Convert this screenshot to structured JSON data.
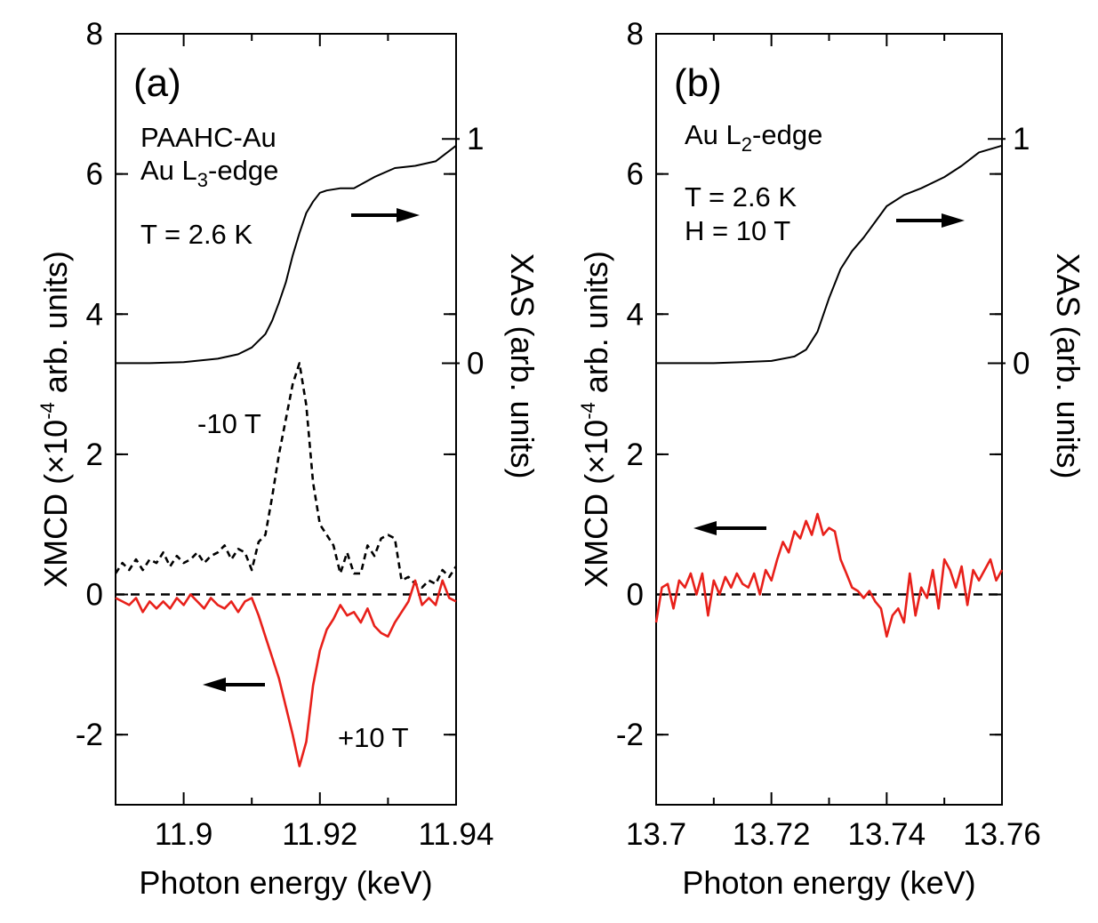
{
  "chart_data": [
    {
      "panel": "a",
      "panel_label": "(a)",
      "type": "line",
      "xlabel": "Photon energy (keV)",
      "ylabel_left": "XMCD (×10⁻⁴ arb. units)",
      "ylabel_left_parts": [
        "XMCD (×10",
        "-4",
        " arb. units)"
      ],
      "ylabel_right": "XAS (arb. units)",
      "xlim": [
        11.89,
        11.94
      ],
      "ylim_left": [
        -3,
        8
      ],
      "xticks": [
        11.9,
        11.92,
        11.94
      ],
      "xtick_labels": [
        "11.9",
        "11.92",
        "11.94"
      ],
      "yticks_left": [
        -2,
        0,
        2,
        4,
        6,
        8
      ],
      "ytick_labels_left": [
        "-2",
        "0",
        "2",
        "4",
        "6",
        "8"
      ],
      "yticks_right": [
        0,
        1
      ],
      "ytick_labels_right": [
        "0",
        "1"
      ],
      "xas_axis_map": {
        "0": 3.3,
        "1": 6.5
      },
      "annotations": {
        "sample": "PAAHC-Au",
        "edge_parts": [
          "Au L",
          "3",
          "-edge"
        ],
        "temperature": "T = 2.6 K",
        "neg_field": "-10 T",
        "pos_field": "+10 T"
      },
      "series": [
        {
          "role": "XAS",
          "axis": "right",
          "color": "#000000",
          "style": "solid",
          "x": [
            11.89,
            11.895,
            11.9,
            11.905,
            11.908,
            11.91,
            11.912,
            11.913,
            11.914,
            11.915,
            11.916,
            11.917,
            11.918,
            11.919,
            11.92,
            11.921,
            11.923,
            11.925,
            11.928,
            11.931,
            11.934,
            11.937,
            11.94
          ],
          "y": [
            0,
            0,
            0.005,
            0.02,
            0.04,
            0.07,
            0.13,
            0.19,
            0.27,
            0.36,
            0.48,
            0.58,
            0.67,
            0.72,
            0.76,
            0.77,
            0.78,
            0.78,
            0.83,
            0.87,
            0.88,
            0.9,
            0.97
          ]
        },
        {
          "name": "-10 T",
          "role": "XMCD",
          "axis": "left",
          "color": "#000000",
          "style": "dashed",
          "x": [
            11.89,
            11.891,
            11.892,
            11.893,
            11.894,
            11.895,
            11.896,
            11.897,
            11.898,
            11.899,
            11.9,
            11.901,
            11.902,
            11.903,
            11.904,
            11.905,
            11.906,
            11.907,
            11.908,
            11.909,
            11.91,
            11.911,
            11.912,
            11.913,
            11.914,
            11.915,
            11.916,
            11.917,
            11.918,
            11.919,
            11.92,
            11.921,
            11.922,
            11.923,
            11.924,
            11.925,
            11.926,
            11.927,
            11.928,
            11.929,
            11.93,
            11.931,
            11.932,
            11.933,
            11.934,
            11.935,
            11.936,
            11.937,
            11.938,
            11.939,
            11.94
          ],
          "y": [
            0.3,
            0.45,
            0.35,
            0.5,
            0.35,
            0.5,
            0.45,
            0.6,
            0.4,
            0.55,
            0.45,
            0.5,
            0.6,
            0.45,
            0.55,
            0.6,
            0.7,
            0.5,
            0.65,
            0.6,
            0.35,
            0.75,
            0.85,
            1.4,
            2.0,
            2.5,
            3.0,
            3.3,
            2.7,
            1.6,
            1.0,
            0.85,
            0.7,
            0.3,
            0.6,
            0.3,
            0.3,
            0.7,
            0.55,
            0.8,
            0.85,
            0.8,
            0.2,
            0.25,
            0.15,
            0.1,
            0.2,
            0.15,
            0.35,
            0.25,
            0.4
          ]
        },
        {
          "name": "+10 T",
          "role": "XMCD",
          "axis": "left",
          "color": "#e8201a",
          "style": "solid",
          "x": [
            11.89,
            11.891,
            11.892,
            11.893,
            11.894,
            11.895,
            11.896,
            11.897,
            11.898,
            11.899,
            11.9,
            11.901,
            11.902,
            11.903,
            11.904,
            11.905,
            11.906,
            11.907,
            11.908,
            11.909,
            11.91,
            11.911,
            11.912,
            11.913,
            11.914,
            11.915,
            11.916,
            11.917,
            11.918,
            11.919,
            11.92,
            11.921,
            11.922,
            11.923,
            11.924,
            11.925,
            11.926,
            11.927,
            11.928,
            11.929,
            11.93,
            11.931,
            11.932,
            11.933,
            11.934,
            11.935,
            11.936,
            11.937,
            11.938,
            11.939,
            11.94
          ],
          "y": [
            -0.05,
            -0.1,
            -0.15,
            -0.05,
            -0.25,
            -0.1,
            -0.2,
            -0.1,
            -0.2,
            -0.05,
            -0.15,
            0.0,
            -0.1,
            -0.2,
            -0.05,
            -0.15,
            -0.2,
            -0.1,
            -0.25,
            -0.1,
            -0.05,
            -0.3,
            -0.6,
            -0.9,
            -1.2,
            -1.6,
            -2.0,
            -2.45,
            -2.1,
            -1.3,
            -0.8,
            -0.5,
            -0.35,
            -0.15,
            -0.3,
            -0.25,
            -0.4,
            -0.2,
            -0.45,
            -0.55,
            -0.6,
            -0.4,
            -0.25,
            -0.1,
            0.2,
            -0.15,
            -0.05,
            -0.15,
            0.2,
            -0.05,
            -0.1
          ]
        }
      ]
    },
    {
      "panel": "b",
      "panel_label": "(b)",
      "type": "line",
      "xlabel": "Photon energy (keV)",
      "ylabel_left": "XMCD (×10⁻⁴ arb. units)",
      "ylabel_left_parts": [
        "XMCD (×10",
        "-4",
        " arb. units)"
      ],
      "ylabel_right": "XAS (arb. units)",
      "xlim": [
        13.7,
        13.76
      ],
      "ylim_left": [
        -3,
        8
      ],
      "xticks": [
        13.7,
        13.72,
        13.74,
        13.76
      ],
      "xtick_labels": [
        "13.7",
        "13.72",
        "13.74",
        "13.76"
      ],
      "yticks_left": [
        -2,
        0,
        2,
        4,
        6,
        8
      ],
      "ytick_labels_left": [
        "-2",
        "0",
        "2",
        "4",
        "6",
        "8"
      ],
      "yticks_right": [
        0,
        1
      ],
      "ytick_labels_right": [
        "0",
        "1"
      ],
      "xas_axis_map": {
        "0": 3.3,
        "1": 6.5
      },
      "annotations": {
        "edge_parts": [
          "Au L",
          "2",
          "-edge"
        ],
        "temperature": "T = 2.6 K",
        "field": "H = 10 T"
      },
      "series": [
        {
          "role": "XAS",
          "axis": "right",
          "color": "#000000",
          "style": "solid",
          "x": [
            13.7,
            13.71,
            13.715,
            13.72,
            13.724,
            13.726,
            13.728,
            13.73,
            13.732,
            13.734,
            13.736,
            13.738,
            13.74,
            13.743,
            13.746,
            13.75,
            13.753,
            13.756,
            13.76
          ],
          "y": [
            0,
            0,
            0.005,
            0.01,
            0.03,
            0.06,
            0.14,
            0.29,
            0.42,
            0.5,
            0.56,
            0.63,
            0.7,
            0.75,
            0.78,
            0.83,
            0.88,
            0.94,
            0.97
          ]
        },
        {
          "name": "H = 10 T",
          "role": "XMCD",
          "axis": "left",
          "color": "#e8201a",
          "style": "solid",
          "x": [
            13.7,
            13.701,
            13.702,
            13.703,
            13.704,
            13.705,
            13.706,
            13.707,
            13.708,
            13.709,
            13.71,
            13.711,
            13.712,
            13.713,
            13.714,
            13.715,
            13.716,
            13.717,
            13.718,
            13.719,
            13.72,
            13.721,
            13.722,
            13.723,
            13.724,
            13.725,
            13.726,
            13.727,
            13.728,
            13.729,
            13.73,
            13.731,
            13.732,
            13.733,
            13.734,
            13.735,
            13.736,
            13.737,
            13.738,
            13.739,
            13.74,
            13.741,
            13.742,
            13.743,
            13.744,
            13.745,
            13.746,
            13.747,
            13.748,
            13.749,
            13.75,
            13.751,
            13.752,
            13.753,
            13.754,
            13.755,
            13.756,
            13.757,
            13.758,
            13.759,
            13.76
          ],
          "y": [
            -0.4,
            0.1,
            0.15,
            -0.2,
            0.2,
            0.1,
            0.3,
            0.0,
            0.3,
            -0.3,
            0.2,
            0.0,
            0.25,
            0.1,
            0.3,
            0.15,
            0.1,
            0.3,
            0.0,
            0.35,
            0.2,
            0.5,
            0.75,
            0.6,
            0.9,
            0.8,
            1.05,
            0.85,
            1.15,
            0.85,
            0.95,
            0.9,
            0.5,
            0.3,
            0.1,
            0.05,
            -0.05,
            0.05,
            -0.1,
            -0.2,
            -0.6,
            -0.3,
            -0.2,
            -0.4,
            0.3,
            -0.3,
            0.1,
            -0.05,
            0.35,
            -0.2,
            0.5,
            0.35,
            0.1,
            0.4,
            -0.15,
            0.35,
            0.2,
            0.35,
            0.5,
            0.2,
            0.35
          ]
        }
      ]
    }
  ]
}
